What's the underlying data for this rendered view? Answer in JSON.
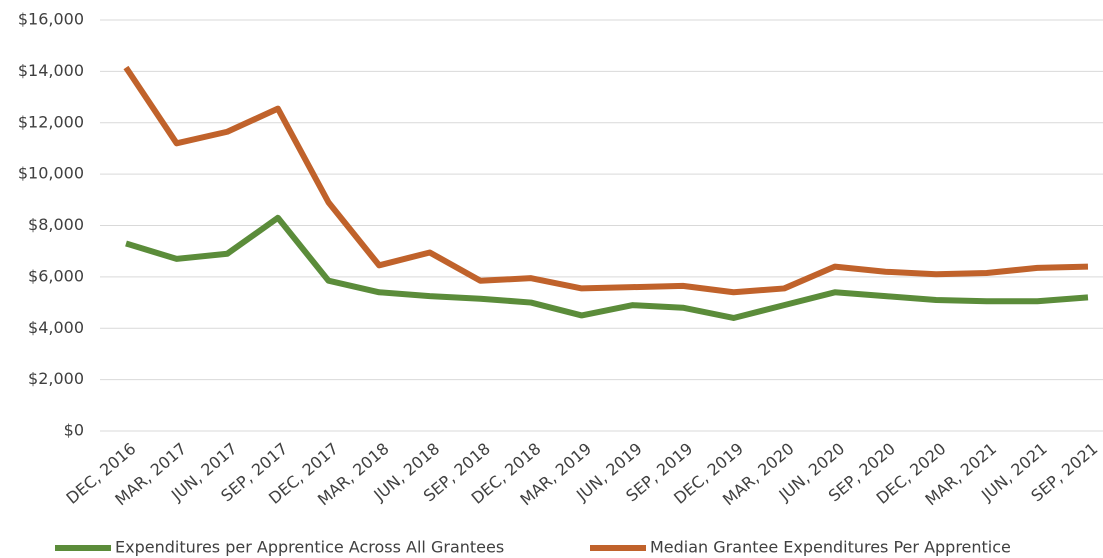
{
  "chart_data": {
    "type": "line",
    "categories": [
      "DEC, 2016",
      "MAR, 2017",
      "JUN, 2017",
      "SEP, 2017",
      "DEC, 2017",
      "MAR, 2018",
      "JUN, 2018",
      "SEP, 2018",
      "DEC, 2018",
      "MAR, 2019",
      "JUN, 2019",
      "SEP, 2019",
      "DEC, 2019",
      "MAR, 2020",
      "JUN, 2020",
      "SEP, 2020",
      "DEC, 2020",
      "MAR, 2021",
      "JUN, 2021",
      "SEP, 2021"
    ],
    "series": [
      {
        "name": "Expenditures per Apprentice Across All Grantees",
        "color": "#5b8c3a",
        "values": [
          7300,
          6700,
          6900,
          8300,
          5850,
          5400,
          5250,
          5150,
          5000,
          4500,
          4900,
          4800,
          4400,
          4900,
          5400,
          5250,
          5100,
          5050,
          5050,
          5200
        ]
      },
      {
        "name": "Median Grantee Expenditures Per Apprentice",
        "color": "#c0622b",
        "values": [
          14150,
          11200,
          11650,
          12550,
          8900,
          6450,
          6950,
          5850,
          5950,
          5550,
          5600,
          5650,
          5400,
          5550,
          6400,
          6200,
          6100,
          6150,
          6350,
          6400
        ]
      }
    ],
    "ylim": [
      0,
      16000
    ],
    "yticks": [
      {
        "value": 0,
        "label": "$0"
      },
      {
        "value": 2000,
        "label": "$2,000"
      },
      {
        "value": 4000,
        "label": "$4,000"
      },
      {
        "value": 6000,
        "label": "$6,000"
      },
      {
        "value": 8000,
        "label": "$8,000"
      },
      {
        "value": 10000,
        "label": "$10,000"
      },
      {
        "value": 12000,
        "label": "$12,000"
      },
      {
        "value": 14000,
        "label": "$14,000"
      },
      {
        "value": 16000,
        "label": "$16,000"
      }
    ],
    "grid": true,
    "legend": "bottom"
  }
}
